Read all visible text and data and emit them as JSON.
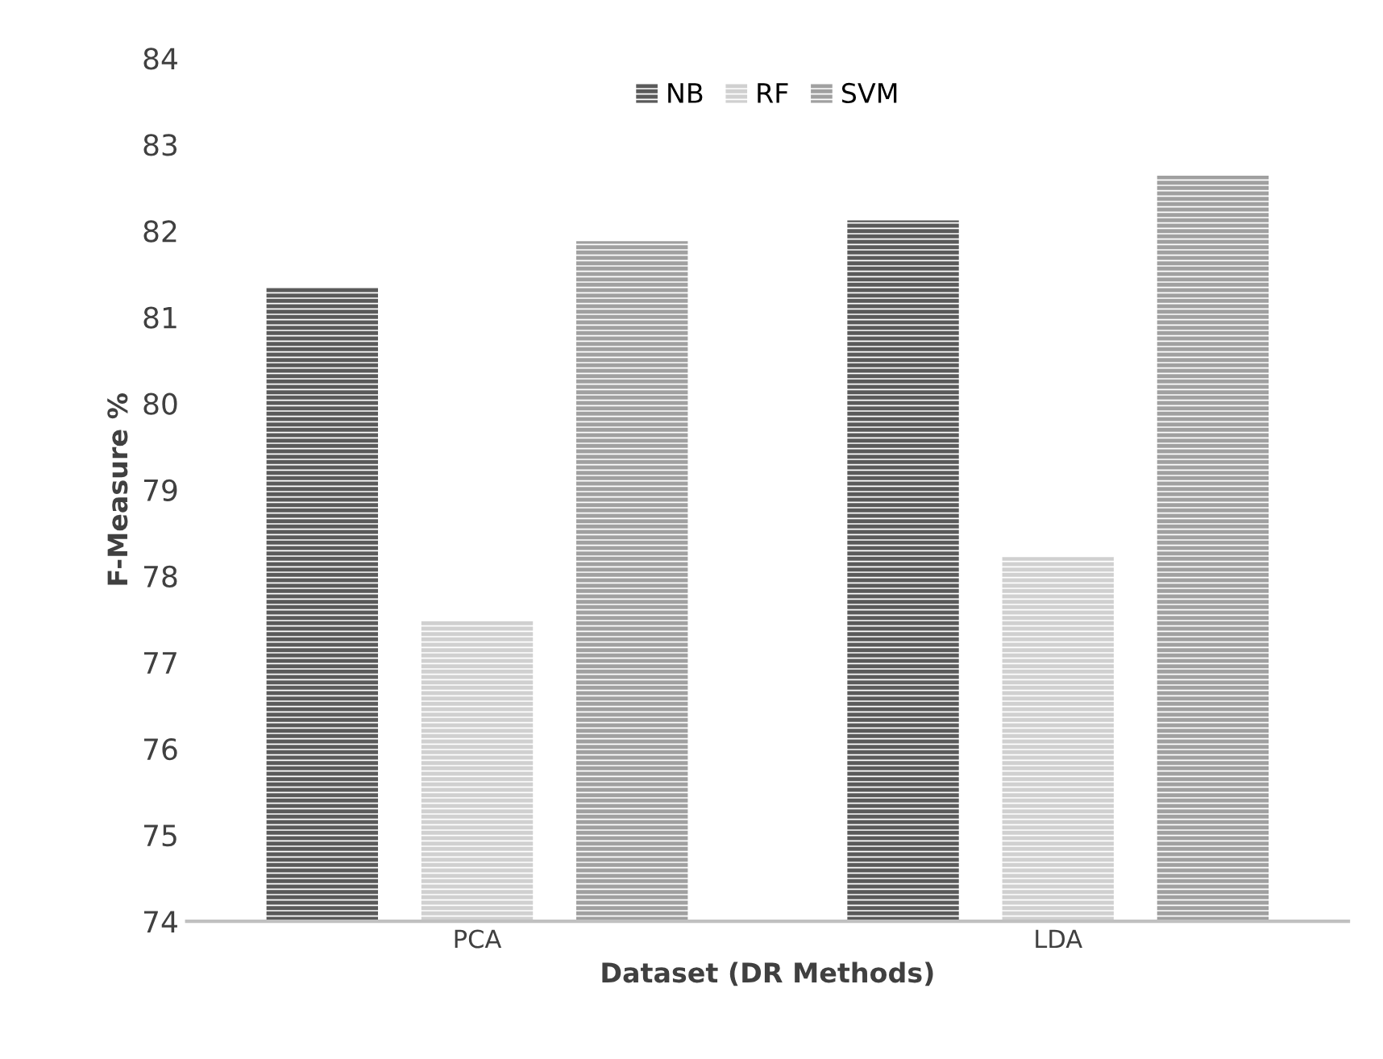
{
  "chart_data": {
    "type": "bar",
    "xlabel": "Dataset (DR Methods)",
    "ylabel": "F-Measure %",
    "categories": [
      "PCA",
      "LDA"
    ],
    "series": [
      {
        "name": "NB",
        "color": "#5a5a5a",
        "values": [
          81.35,
          82.12
        ]
      },
      {
        "name": "RF",
        "color": "#d0d0d0",
        "values": [
          77.48,
          78.22
        ]
      },
      {
        "name": "SVM",
        "color": "#a0a0a0",
        "values": [
          81.88,
          82.64
        ]
      }
    ],
    "ylim": [
      74,
      84
    ],
    "yticks": [
      74,
      75,
      76,
      77,
      78,
      79,
      80,
      81,
      82,
      83,
      84
    ],
    "grid": false,
    "legend": "top"
  }
}
